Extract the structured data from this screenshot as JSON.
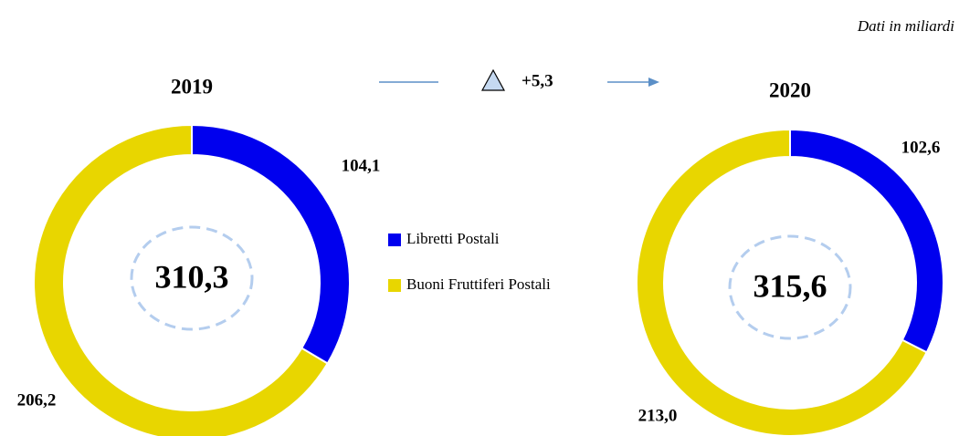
{
  "note": "Dati in miliardi",
  "change": {
    "value": 5.3,
    "label": "+5,3"
  },
  "chart_data": [
    {
      "type": "pie",
      "title": "2019",
      "categories": [
        "Libretti Postali",
        "Buoni Fruttiferi Postali"
      ],
      "colors": [
        "#0000ee",
        "#e8d600"
      ],
      "values": [
        104.1,
        206.2
      ],
      "value_labels": [
        "104,1",
        "206,2"
      ],
      "total": {
        "value": 310.3,
        "label": "310,3"
      }
    },
    {
      "type": "pie",
      "title": "2020",
      "values": [
        102.6,
        213.0
      ],
      "value_labels": [
        "102,6",
        "213,0"
      ],
      "total": {
        "value": 315.6,
        "label": "315,6"
      }
    }
  ]
}
